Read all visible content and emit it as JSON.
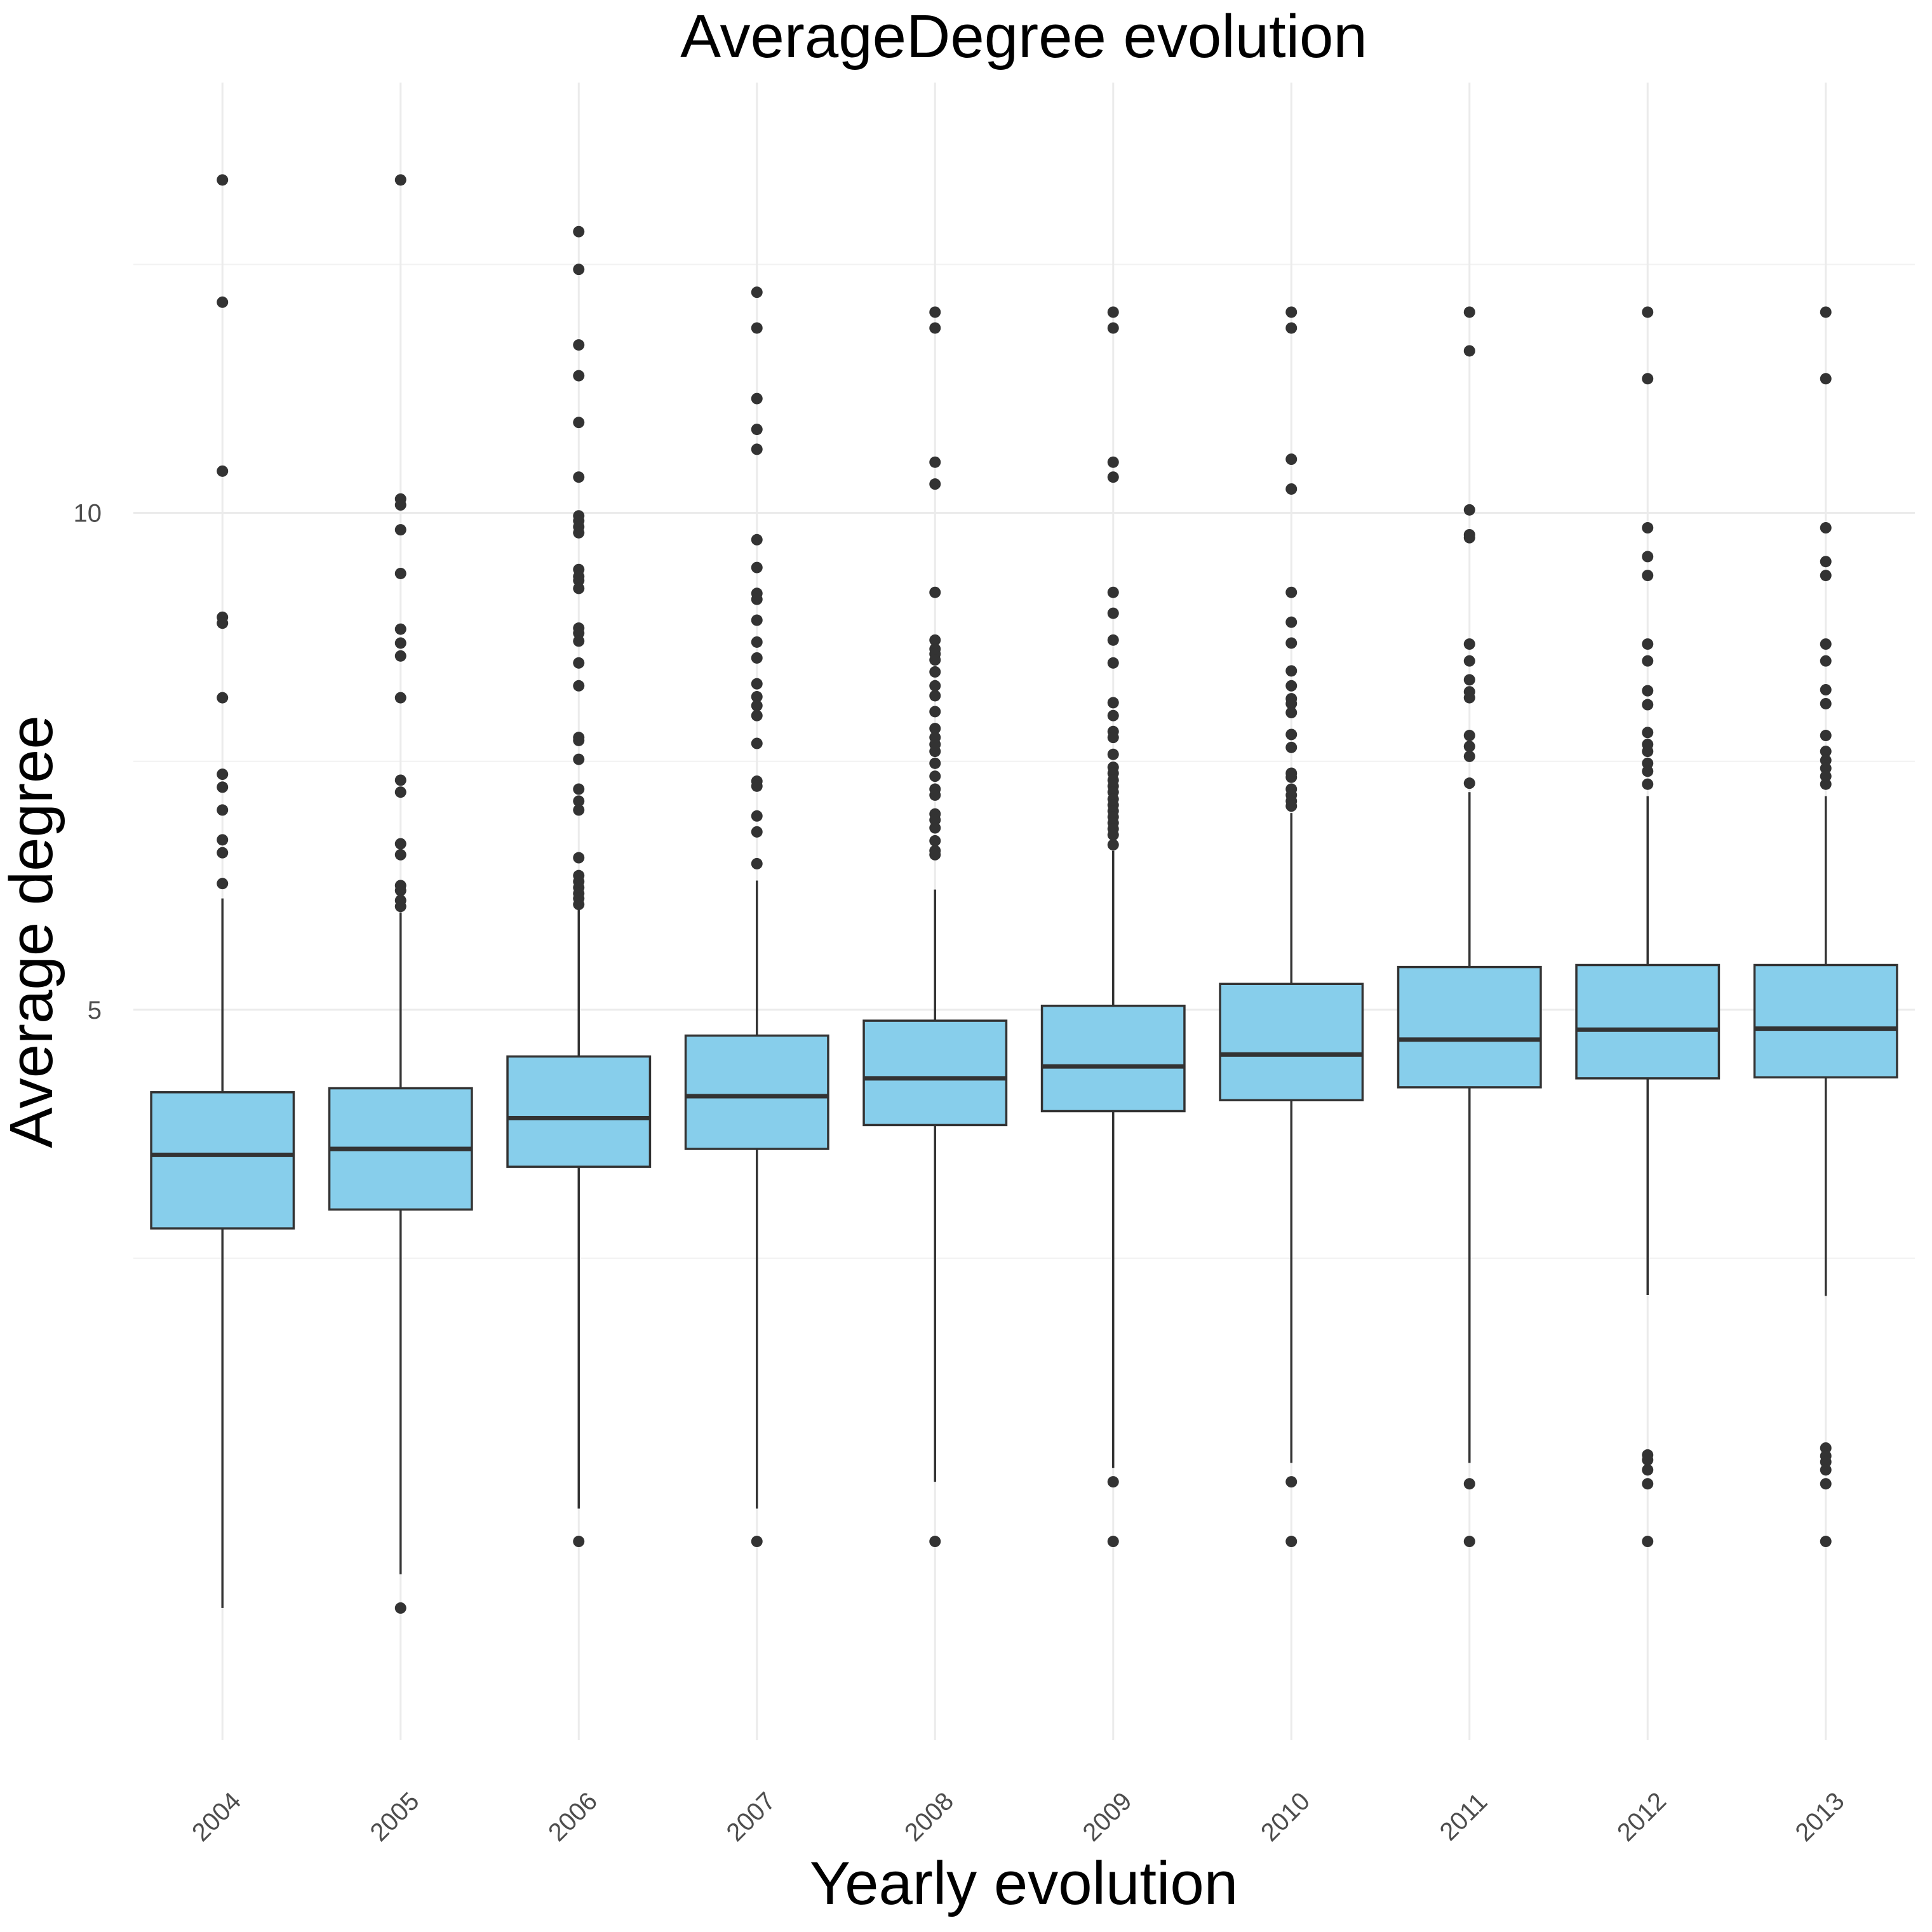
{
  "chart_data": {
    "type": "boxplot",
    "title": "AverageDegree evolution",
    "xlabel": "Yearly evolution",
    "ylabel": "Average degree",
    "ylim": [
      -2.35,
      14.33
    ],
    "yticks": [
      5,
      10
    ],
    "grid": true,
    "colors": {
      "box_fill": "#87ceeb",
      "stroke": "#333333",
      "gridline": "#ebebeb"
    },
    "categories": [
      "2004",
      "2005",
      "2006",
      "2007",
      "2008",
      "2009",
      "2010",
      "2011",
      "2012",
      "2013"
    ],
    "boxes": [
      {
        "year": "2004",
        "whisker_low": -1.02,
        "q1": 2.8,
        "median": 3.54,
        "q3": 4.17,
        "whisker_high": 6.12,
        "outliers": [
          13.35,
          12.12,
          10.42,
          8.95,
          8.89,
          8.14,
          7.37,
          7.24,
          7.01,
          6.71,
          6.58,
          6.27
        ]
      },
      {
        "year": "2005",
        "whisker_low": -0.68,
        "q1": 2.99,
        "median": 3.6,
        "q3": 4.21,
        "whisker_high": 5.98,
        "outliers": [
          13.35,
          10.14,
          10.08,
          9.83,
          9.39,
          8.83,
          8.69,
          8.56,
          8.14,
          7.31,
          7.19,
          6.67,
          6.56,
          6.25,
          6.2,
          6.1,
          6.04,
          -1.02
        ]
      },
      {
        "year": "2006",
        "whisker_low": -0.02,
        "q1": 3.42,
        "median": 3.91,
        "q3": 4.53,
        "whisker_high": 6.12,
        "outliers": [
          12.83,
          12.45,
          11.69,
          11.38,
          10.91,
          10.36,
          9.97,
          9.92,
          9.86,
          9.8,
          9.43,
          9.36,
          9.32,
          9.24,
          8.84,
          8.79,
          8.71,
          8.49,
          8.26,
          7.74,
          7.71,
          7.52,
          7.22,
          7.1,
          7.01,
          6.53,
          6.35,
          6.29,
          6.23,
          6.17,
          6.12,
          6.06,
          -0.35
        ]
      },
      {
        "year": "2007",
        "whisker_low": -0.02,
        "q1": 3.6,
        "median": 4.13,
        "q3": 4.74,
        "whisker_high": 6.3,
        "outliers": [
          12.22,
          11.86,
          11.15,
          10.84,
          10.64,
          9.73,
          9.45,
          9.19,
          9.13,
          8.92,
          8.7,
          8.54,
          8.28,
          8.15,
          8.06,
          7.96,
          7.68,
          7.3,
          7.25,
          6.95,
          6.79,
          6.47,
          -0.35
        ]
      },
      {
        "year": "2008",
        "whisker_low": 0.25,
        "q1": 3.84,
        "median": 4.31,
        "q3": 4.89,
        "whisker_high": 6.21,
        "outliers": [
          12.02,
          11.86,
          10.51,
          10.29,
          9.2,
          8.72,
          8.63,
          8.58,
          8.52,
          8.4,
          8.26,
          8.16,
          8.0,
          7.83,
          7.74,
          7.67,
          7.6,
          7.48,
          7.35,
          7.22,
          7.16,
          6.97,
          6.91,
          6.83,
          6.7,
          6.6,
          6.56,
          -0.35
        ]
      },
      {
        "year": "2009",
        "whisker_low": 0.39,
        "q1": 3.98,
        "median": 4.43,
        "q3": 5.04,
        "whisker_high": 6.6,
        "outliers": [
          12.02,
          11.86,
          10.51,
          10.36,
          9.2,
          8.99,
          8.72,
          8.49,
          8.09,
          7.96,
          7.8,
          7.74,
          7.57,
          7.44,
          7.38,
          7.31,
          7.25,
          7.19,
          7.12,
          7.06,
          7.0,
          6.94,
          6.88,
          6.82,
          6.76,
          6.66,
          0.25,
          -0.35
        ]
      },
      {
        "year": "2010",
        "whisker_low": 0.44,
        "q1": 4.09,
        "median": 4.55,
        "q3": 5.26,
        "whisker_high": 6.98,
        "outliers": [
          12.02,
          11.86,
          10.54,
          10.24,
          9.2,
          8.9,
          8.69,
          8.41,
          8.26,
          8.13,
          8.08,
          7.99,
          7.77,
          7.64,
          7.38,
          7.34,
          7.22,
          7.16,
          7.1,
          7.05,
          0.25,
          -0.35
        ]
      },
      {
        "year": "2011",
        "whisker_low": 0.44,
        "q1": 4.22,
        "median": 4.7,
        "q3": 5.43,
        "whisker_high": 7.19,
        "outliers": [
          12.02,
          11.63,
          10.03,
          9.78,
          9.75,
          8.68,
          8.51,
          8.32,
          8.2,
          8.14,
          7.76,
          7.65,
          7.55,
          7.28,
          0.23,
          -0.35
        ]
      },
      {
        "year": "2012",
        "whisker_low": 2.13,
        "q1": 4.31,
        "median": 4.8,
        "q3": 5.45,
        "whisker_high": 7.15,
        "outliers": [
          12.02,
          11.35,
          9.85,
          9.56,
          9.37,
          8.68,
          8.51,
          8.21,
          8.07,
          7.79,
          7.67,
          7.6,
          7.48,
          7.4,
          7.27,
          0.52,
          0.47,
          0.37,
          0.23,
          -0.35
        ]
      },
      {
        "year": "2013",
        "whisker_low": 2.12,
        "q1": 4.32,
        "median": 4.81,
        "q3": 5.45,
        "whisker_high": 7.15,
        "outliers": [
          12.02,
          11.35,
          9.85,
          9.51,
          9.37,
          8.68,
          8.51,
          8.22,
          8.08,
          7.76,
          7.6,
          7.51,
          7.43,
          7.35,
          7.27,
          0.59,
          0.51,
          0.45,
          0.37,
          0.23,
          -0.35
        ]
      }
    ]
  }
}
